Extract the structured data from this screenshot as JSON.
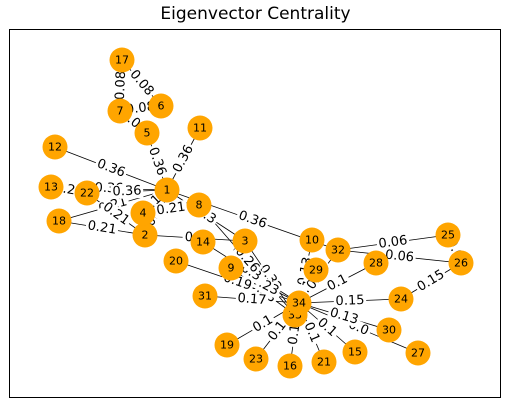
{
  "figure": {
    "title": "Eigenvector Centrality",
    "node_color": "#ffa500",
    "edge_color": "#000000"
  },
  "chart_data": {
    "type": "network",
    "title": "Eigenvector Centrality",
    "nodes": [
      "1",
      "2",
      "3",
      "4",
      "5",
      "6",
      "7",
      "8",
      "9",
      "10",
      "11",
      "12",
      "13",
      "14",
      "15",
      "16",
      "17",
      "18",
      "19",
      "20",
      "21",
      "22",
      "23",
      "24",
      "25",
      "26",
      "27",
      "28",
      "29",
      "30",
      "31",
      "32",
      "33",
      "34"
    ],
    "edges": [
      {
        "source": "1",
        "target": "2",
        "label": "0.21"
      },
      {
        "source": "1",
        "target": "3",
        "label": "0.3"
      },
      {
        "source": "1",
        "target": "4",
        "label": "0.16"
      },
      {
        "source": "1",
        "target": "5",
        "label": "0.36"
      },
      {
        "source": "1",
        "target": "11",
        "label": "0.36"
      },
      {
        "source": "1",
        "target": "12",
        "label": "0.36"
      },
      {
        "source": "1",
        "target": "13",
        "label": "0.36"
      },
      {
        "source": "1",
        "target": "18",
        "label": "0.21"
      },
      {
        "source": "1",
        "target": "22",
        "label": "0.36"
      },
      {
        "source": "1",
        "target": "32",
        "label": "0.36"
      },
      {
        "source": "2",
        "target": "3",
        "label": "0.3"
      },
      {
        "source": "2",
        "target": "18",
        "label": "0.21"
      },
      {
        "source": "2",
        "target": "22",
        "label": "0.21"
      },
      {
        "source": "3",
        "target": "9",
        "label": "0.33"
      },
      {
        "source": "3",
        "target": "33",
        "label": "0.32"
      },
      {
        "source": "5",
        "target": "7",
        "label": "0.08"
      },
      {
        "source": "6",
        "target": "7",
        "label": "0.08"
      },
      {
        "source": "6",
        "target": "17",
        "label": "0.08"
      },
      {
        "source": "7",
        "target": "17",
        "label": "0.08"
      },
      {
        "source": "9",
        "target": "33",
        "label": "0.33"
      },
      {
        "source": "9",
        "target": "34",
        "label": "0.23"
      },
      {
        "source": "10",
        "target": "34",
        "label": "0.13"
      },
      {
        "source": "14",
        "target": "34",
        "label": "0.3"
      },
      {
        "source": "15",
        "target": "34",
        "label": "0.1"
      },
      {
        "source": "16",
        "target": "34",
        "label": "0.1"
      },
      {
        "source": "19",
        "target": "34",
        "label": "0.1"
      },
      {
        "source": "20",
        "target": "34",
        "label": "0.19"
      },
      {
        "source": "21",
        "target": "34",
        "label": "0.1"
      },
      {
        "source": "23",
        "target": "34",
        "label": "0.1"
      },
      {
        "source": "24",
        "target": "26",
        "label": "0.15"
      },
      {
        "source": "24",
        "target": "34",
        "label": "0.15"
      },
      {
        "source": "25",
        "target": "32",
        "label": "0.06"
      },
      {
        "source": "25",
        "target": "26",
        "label": "0.0"
      },
      {
        "source": "26",
        "target": "32",
        "label": "0.06"
      },
      {
        "source": "27",
        "target": "34",
        "label": "0.0"
      },
      {
        "source": "28",
        "target": "34",
        "label": "0.1"
      },
      {
        "source": "29",
        "target": "34",
        "label": "0.13"
      },
      {
        "source": "30",
        "target": "34",
        "label": "0.13"
      },
      {
        "source": "31",
        "target": "34",
        "label": "0.17"
      },
      {
        "source": "32",
        "target": "34",
        "label": "0.13"
      },
      {
        "source": "33",
        "target": "34",
        "label": "0.3"
      },
      {
        "source": "13",
        "target": "22",
        "label": "0.21"
      },
      {
        "source": "4",
        "target": "8",
        "label": "0.21"
      },
      {
        "source": "8",
        "target": "33",
        "label": "0.26"
      }
    ]
  }
}
